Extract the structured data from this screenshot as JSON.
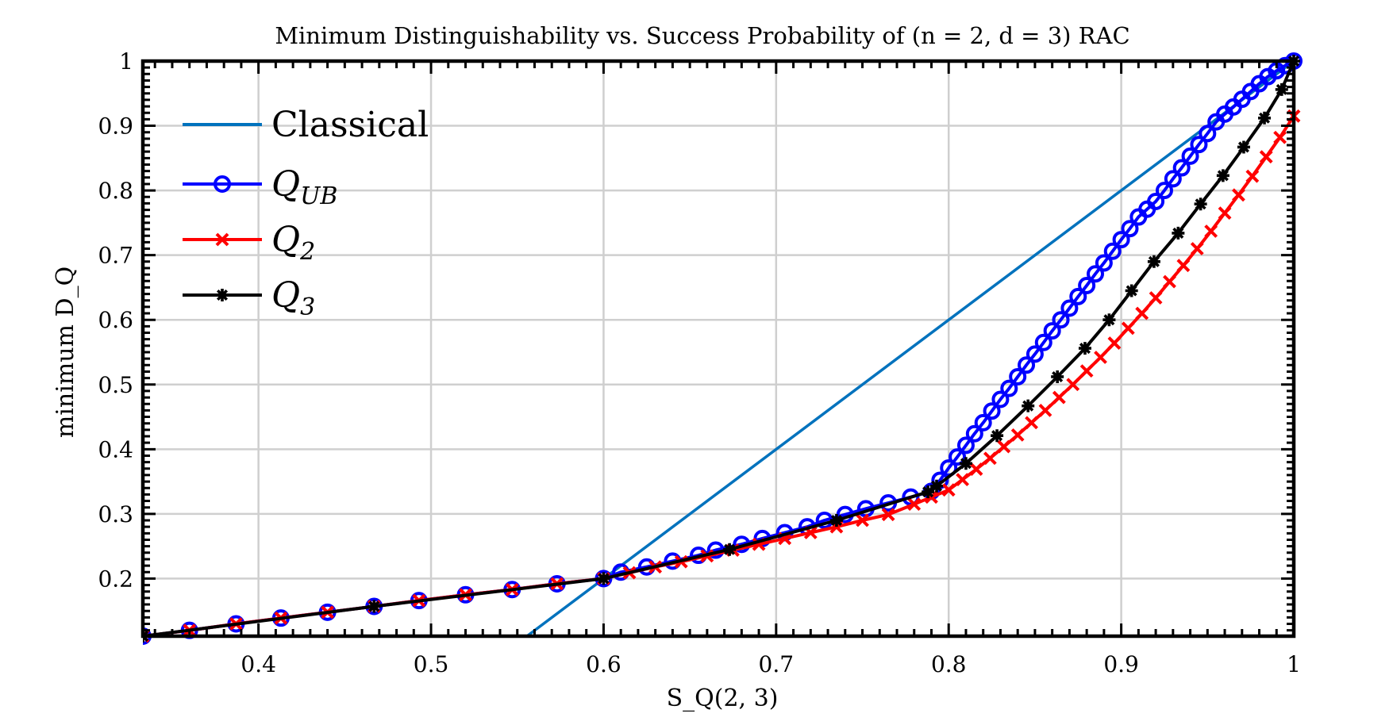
{
  "chart_data": {
    "type": "line",
    "title": "Minimum Distinguishability vs. Success Probability of (n = 2, d = 3) RAC",
    "xlabel": "S_Q(2, 3)",
    "ylabel": "minimum D_Q",
    "xlim": [
      0.333,
      1.0
    ],
    "ylim": [
      0.111,
      1.0
    ],
    "xticks": [
      0.4,
      0.5,
      0.6,
      0.7,
      0.8,
      0.9,
      1.0
    ],
    "xtick_labels": [
      "0.4",
      "0.5",
      "0.6",
      "0.7",
      "0.8",
      "0.9",
      "1"
    ],
    "yticks": [
      0.2,
      0.3,
      0.4,
      0.5,
      0.6,
      0.7,
      0.8,
      0.9,
      1.0
    ],
    "ytick_labels": [
      "0.2",
      "0.3",
      "0.4",
      "0.5",
      "0.6",
      "0.7",
      "0.8",
      "0.9",
      "1"
    ],
    "grid": true,
    "legend_position": "top-left",
    "series": [
      {
        "name": "Classical",
        "legend_label": "Classical",
        "color": "#0072BD",
        "marker": "none",
        "x": [
          0.5556,
          1.0
        ],
        "y": [
          0.111,
          1.0
        ]
      },
      {
        "name": "Q_UB",
        "legend_label": "Q",
        "legend_subscript": "UB",
        "color": "#0000FF",
        "marker": "circle",
        "x": [
          0.333,
          0.36,
          0.387,
          0.413,
          0.44,
          0.467,
          0.493,
          0.52,
          0.547,
          0.573,
          0.6,
          0.61,
          0.625,
          0.64,
          0.655,
          0.665,
          0.68,
          0.692,
          0.705,
          0.718,
          0.728,
          0.74,
          0.752,
          0.765,
          0.778,
          0.79,
          0.795,
          0.8,
          0.805,
          0.81,
          0.815,
          0.82,
          0.825,
          0.83,
          0.835,
          0.84,
          0.845,
          0.85,
          0.855,
          0.86,
          0.865,
          0.87,
          0.875,
          0.88,
          0.885,
          0.89,
          0.895,
          0.9,
          0.905,
          0.91,
          0.915,
          0.92,
          0.925,
          0.93,
          0.935,
          0.94,
          0.945,
          0.95,
          0.955,
          0.96,
          0.965,
          0.97,
          0.975,
          0.98,
          0.985,
          0.99,
          0.995,
          1.0
        ],
        "y": [
          0.111,
          0.12,
          0.13,
          0.139,
          0.148,
          0.157,
          0.166,
          0.175,
          0.183,
          0.192,
          0.2,
          0.21,
          0.218,
          0.227,
          0.236,
          0.244,
          0.253,
          0.262,
          0.271,
          0.28,
          0.29,
          0.299,
          0.308,
          0.317,
          0.326,
          0.335,
          0.352,
          0.371,
          0.388,
          0.406,
          0.424,
          0.441,
          0.459,
          0.477,
          0.494,
          0.512,
          0.53,
          0.547,
          0.565,
          0.583,
          0.6,
          0.618,
          0.636,
          0.653,
          0.671,
          0.688,
          0.706,
          0.724,
          0.741,
          0.759,
          0.771,
          0.783,
          0.8,
          0.818,
          0.835,
          0.853,
          0.871,
          0.888,
          0.906,
          0.918,
          0.929,
          0.941,
          0.953,
          0.965,
          0.976,
          0.985,
          0.993,
          1.0
        ]
      },
      {
        "name": "Q_2",
        "legend_label": "Q",
        "legend_subscript": "2",
        "color": "#FF0000",
        "marker": "x",
        "x": [
          0.333,
          0.36,
          0.387,
          0.413,
          0.44,
          0.467,
          0.493,
          0.52,
          0.547,
          0.573,
          0.6,
          0.615,
          0.63,
          0.645,
          0.66,
          0.675,
          0.69,
          0.705,
          0.72,
          0.735,
          0.75,
          0.765,
          0.78,
          0.79,
          0.8,
          0.808,
          0.816,
          0.824,
          0.832,
          0.84,
          0.848,
          0.856,
          0.864,
          0.872,
          0.88,
          0.888,
          0.896,
          0.904,
          0.912,
          0.92,
          0.928,
          0.936,
          0.944,
          0.952,
          0.96,
          0.968,
          0.976,
          0.984,
          0.992,
          1.0
        ],
        "y": [
          0.111,
          0.12,
          0.13,
          0.139,
          0.148,
          0.157,
          0.166,
          0.175,
          0.183,
          0.192,
          0.2,
          0.209,
          0.218,
          0.226,
          0.235,
          0.244,
          0.253,
          0.262,
          0.271,
          0.28,
          0.29,
          0.299,
          0.315,
          0.326,
          0.337,
          0.353,
          0.369,
          0.386,
          0.404,
          0.422,
          0.441,
          0.46,
          0.48,
          0.5,
          0.521,
          0.542,
          0.564,
          0.587,
          0.61,
          0.634,
          0.659,
          0.684,
          0.71,
          0.737,
          0.765,
          0.793,
          0.822,
          0.852,
          0.882,
          0.915
        ]
      },
      {
        "name": "Q_3",
        "legend_label": "Q",
        "legend_subscript": "3",
        "color": "#000000",
        "marker": "asterisk",
        "x": [
          0.333,
          0.467,
          0.6,
          0.673,
          0.735,
          0.788,
          0.793,
          0.81,
          0.828,
          0.846,
          0.863,
          0.879,
          0.893,
          0.906,
          0.919,
          0.933,
          0.946,
          0.959,
          0.971,
          0.983,
          0.993,
          1.0
        ],
        "y": [
          0.111,
          0.157,
          0.2,
          0.245,
          0.29,
          0.334,
          0.343,
          0.378,
          0.421,
          0.467,
          0.512,
          0.556,
          0.6,
          0.645,
          0.69,
          0.734,
          0.779,
          0.823,
          0.867,
          0.912,
          0.956,
          1.0
        ]
      }
    ]
  }
}
